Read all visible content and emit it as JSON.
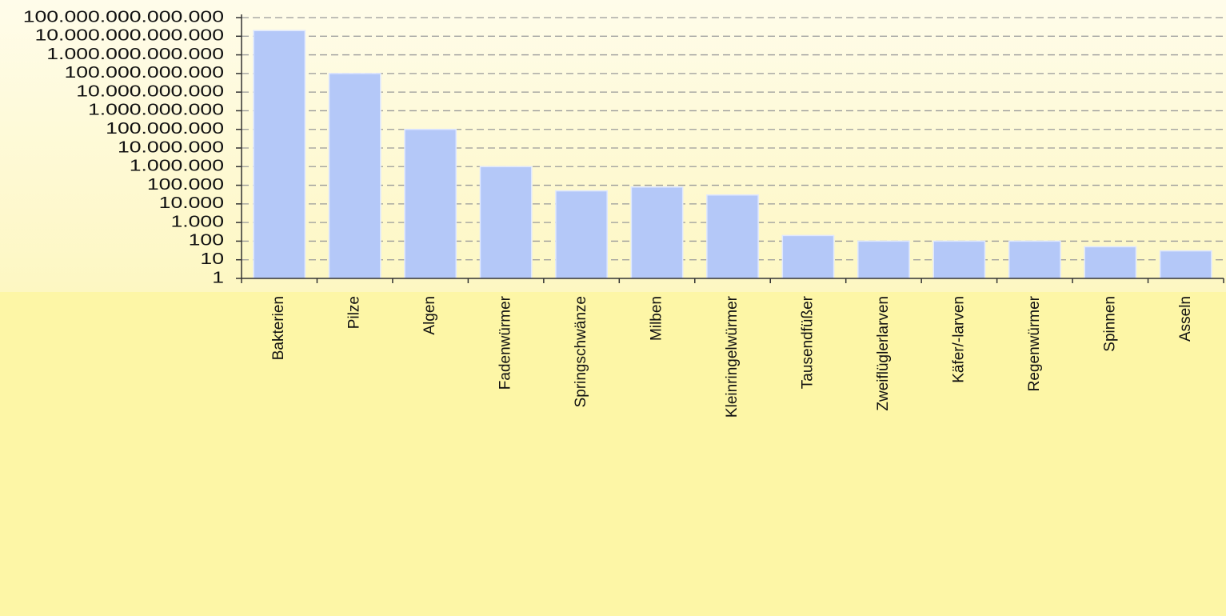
{
  "chart_data": {
    "type": "bar",
    "categories": [
      "Bakterien",
      "Pilze",
      "Algen",
      "Fadenwürmer",
      "Springschwänze",
      "Milben",
      "Kleinringelwürmer",
      "Tausendfüßer",
      "Zweiflüglerlarven",
      "Käfer/-larven",
      "Regenwürmer",
      "Spinnen",
      "Asseln"
    ],
    "values": [
      20000000000000,
      100000000000,
      100000000,
      1000000,
      50000,
      80000,
      30000,
      200,
      100,
      100,
      100,
      50,
      30
    ],
    "color": "#b4c8f8",
    "log_scale": true,
    "grid": true,
    "ylim": [
      1,
      100000000000000
    ],
    "yticks": [
      1,
      10,
      100,
      {
        "value": 1000,
        "label": "1.000"
      },
      {
        "value": 10000,
        "label": "10.000"
      },
      {
        "value": 100000,
        "label": "100.000"
      },
      {
        "value": 1000000,
        "label": "1.000.000"
      },
      {
        "value": 10000000,
        "label": "10.000.000"
      },
      {
        "value": 100000000,
        "label": "100.000.000"
      },
      {
        "value": 1000000000,
        "label": "1.000.000.000"
      },
      {
        "value": 10000000000,
        "label": "10.000.000.000"
      },
      {
        "value": 100000000000,
        "label": "100.000.000.000"
      },
      {
        "value": 1000000000000,
        "label": "1.000.000.000.000"
      },
      {
        "value": 10000000000000,
        "label": "10.000.000.000.000"
      },
      {
        "value": 100000000000000,
        "label": "100.000.000.000.000"
      }
    ]
  }
}
